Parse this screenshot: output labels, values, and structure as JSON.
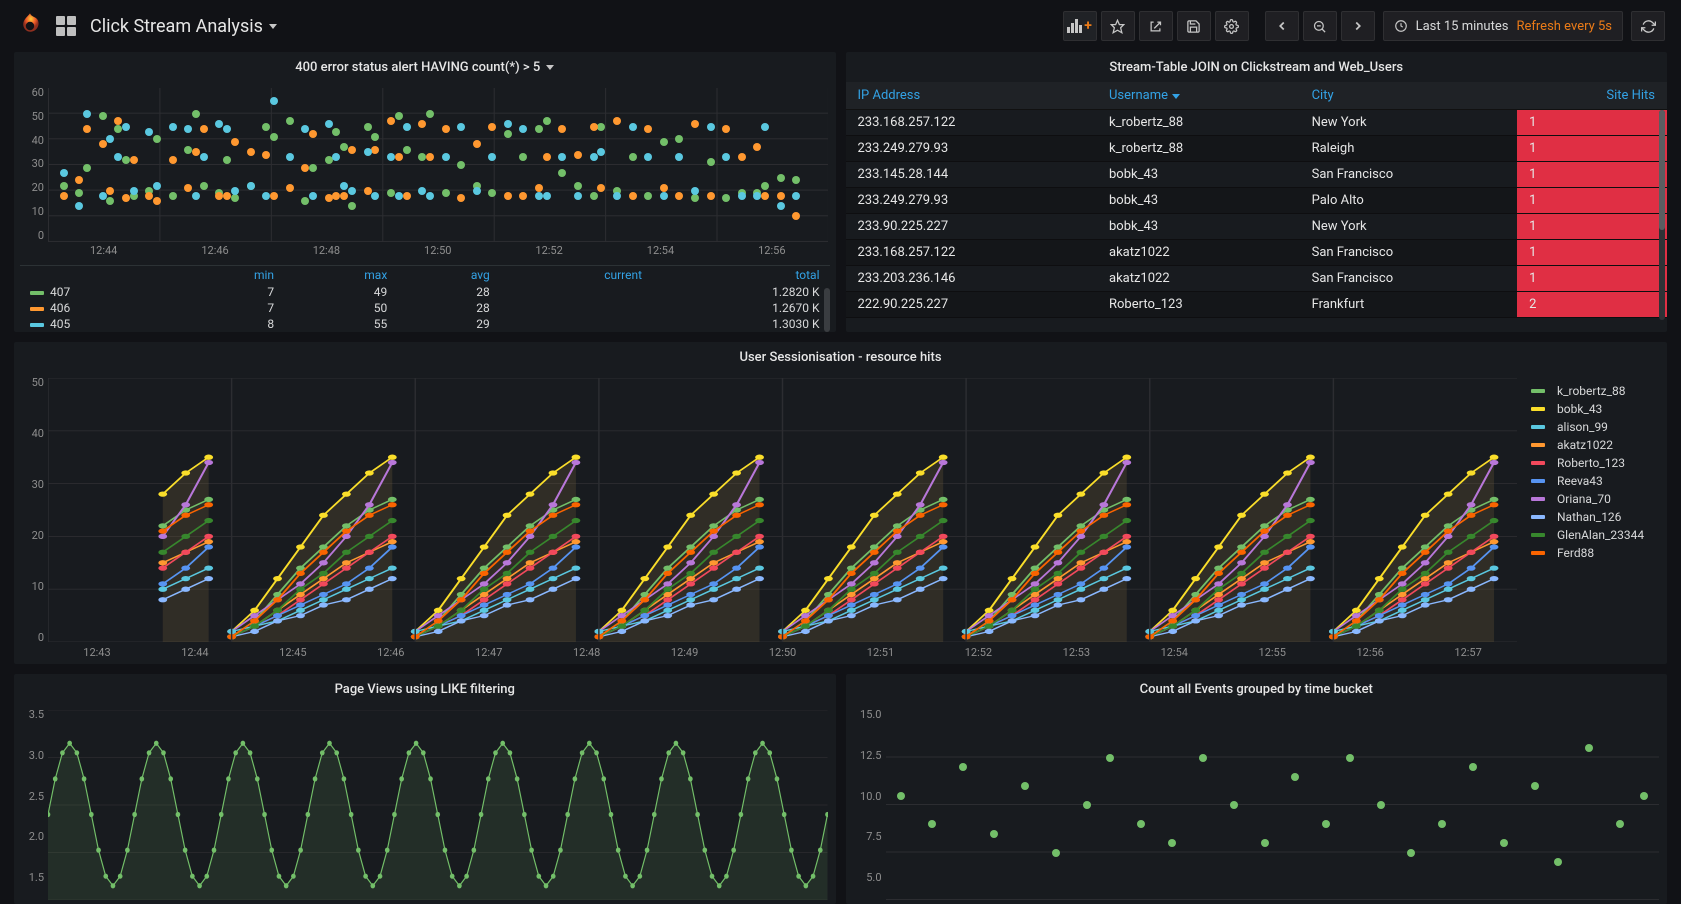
{
  "colors": {
    "accent": "#eb7b18",
    "link": "#33a2e5",
    "red_alert": "#e02f44",
    "panel_bg": "#181b1f",
    "grid": "#2c2d31"
  },
  "header": {
    "title": "Click Stream Analysis",
    "time_range": "Last 15 minutes",
    "refresh_label": "Refresh every 5s"
  },
  "toolbar_icons": {
    "add_panel": "add-panel-icon",
    "star": "star-icon",
    "share": "share-icon",
    "save": "save-icon",
    "settings": "gear-icon",
    "back": "chevron-left-icon",
    "zoom": "zoom-out-icon",
    "forward": "chevron-right-icon",
    "cycle": "refresh-icon"
  },
  "panel_error": {
    "title": "400 error status alert HAVING count(*) > 5",
    "y": {
      "min": 0,
      "max": 60,
      "ticks": [
        0,
        10,
        20,
        30,
        40,
        50,
        60
      ]
    },
    "x_ticks": [
      "12:44",
      "12:46",
      "12:48",
      "12:50",
      "12:52",
      "12:54",
      "12:56"
    ],
    "legend_headers": [
      "",
      "min",
      "max",
      "avg",
      "current",
      "total"
    ],
    "series": [
      {
        "label": "407",
        "color": "#73bf69",
        "min": 7,
        "max": 49,
        "avg": 28,
        "current": "",
        "total": "1.2820 K"
      },
      {
        "label": "406",
        "color": "#ff9830",
        "min": 7,
        "max": 50,
        "avg": 28,
        "current": "",
        "total": "1.2670 K"
      },
      {
        "label": "405",
        "color": "#5ac8e0",
        "min": 8,
        "max": 55,
        "avg": 29,
        "current": "",
        "total": "1.3030 K"
      }
    ],
    "points": {
      "green": [
        [
          2,
          22
        ],
        [
          4,
          19
        ],
        [
          5,
          29
        ],
        [
          7,
          49
        ],
        [
          8,
          16
        ],
        [
          9,
          44
        ],
        [
          10,
          32
        ],
        [
          11,
          18
        ],
        [
          13,
          20
        ],
        [
          14,
          40
        ],
        [
          16,
          18
        ],
        [
          18,
          36
        ],
        [
          19,
          50
        ],
        [
          20,
          22
        ],
        [
          22,
          19
        ],
        [
          23,
          32
        ],
        [
          24,
          17
        ],
        [
          26,
          22
        ],
        [
          28,
          45
        ],
        [
          29,
          41
        ],
        [
          31,
          47
        ],
        [
          33,
          16
        ],
        [
          34,
          29
        ],
        [
          36,
          32
        ],
        [
          37,
          43
        ],
        [
          38,
          37
        ],
        [
          39,
          14
        ],
        [
          41,
          45
        ],
        [
          42,
          41
        ],
        [
          44,
          19
        ],
        [
          45,
          49
        ],
        [
          46,
          36
        ],
        [
          48,
          33
        ],
        [
          49,
          50
        ],
        [
          51,
          19
        ],
        [
          53,
          30
        ],
        [
          55,
          22
        ],
        [
          57,
          19
        ],
        [
          59,
          42
        ],
        [
          61,
          33
        ],
        [
          63,
          44
        ],
        [
          64,
          47
        ],
        [
          66,
          27
        ],
        [
          68,
          22
        ],
        [
          70,
          18
        ],
        [
          71,
          45
        ],
        [
          73,
          20
        ],
        [
          75,
          33
        ],
        [
          77,
          18
        ],
        [
          79,
          39
        ],
        [
          81,
          40
        ],
        [
          83,
          17
        ],
        [
          85,
          31
        ],
        [
          87,
          17
        ],
        [
          89,
          19
        ],
        [
          91,
          19
        ],
        [
          92,
          22
        ],
        [
          94,
          25
        ],
        [
          96,
          24
        ]
      ],
      "orange": [
        [
          2,
          18
        ],
        [
          4,
          24
        ],
        [
          5,
          44
        ],
        [
          7,
          38
        ],
        [
          8,
          20
        ],
        [
          9,
          47
        ],
        [
          10,
          17
        ],
        [
          11,
          32
        ],
        [
          13,
          18
        ],
        [
          14,
          16
        ],
        [
          16,
          32
        ],
        [
          18,
          21
        ],
        [
          19,
          35
        ],
        [
          20,
          44
        ],
        [
          22,
          18
        ],
        [
          23,
          18
        ],
        [
          24,
          39
        ],
        [
          26,
          35
        ],
        [
          28,
          34
        ],
        [
          29,
          18
        ],
        [
          31,
          21
        ],
        [
          33,
          29
        ],
        [
          34,
          42
        ],
        [
          36,
          17
        ],
        [
          37,
          18
        ],
        [
          38,
          18
        ],
        [
          39,
          36
        ],
        [
          41,
          20
        ],
        [
          42,
          36
        ],
        [
          44,
          47
        ],
        [
          45,
          33
        ],
        [
          46,
          18
        ],
        [
          48,
          46
        ],
        [
          49,
          33
        ],
        [
          51,
          44
        ],
        [
          53,
          17
        ],
        [
          55,
          38
        ],
        [
          57,
          45
        ],
        [
          59,
          18
        ],
        [
          61,
          18
        ],
        [
          63,
          21
        ],
        [
          64,
          33
        ],
        [
          66,
          44
        ],
        [
          68,
          34
        ],
        [
          70,
          45
        ],
        [
          71,
          21
        ],
        [
          73,
          47
        ],
        [
          75,
          18
        ],
        [
          77,
          44
        ],
        [
          79,
          21
        ],
        [
          81,
          18
        ],
        [
          83,
          46
        ],
        [
          85,
          18
        ],
        [
          87,
          44
        ],
        [
          89,
          33
        ],
        [
          91,
          37
        ],
        [
          92,
          18
        ],
        [
          94,
          18
        ],
        [
          96,
          10
        ]
      ],
      "cyan": [
        [
          2,
          27
        ],
        [
          4,
          14
        ],
        [
          5,
          50
        ],
        [
          7,
          18
        ],
        [
          8,
          40
        ],
        [
          9,
          33
        ],
        [
          10,
          45
        ],
        [
          11,
          20
        ],
        [
          13,
          43
        ],
        [
          14,
          22
        ],
        [
          16,
          45
        ],
        [
          18,
          44
        ],
        [
          19,
          18
        ],
        [
          20,
          33
        ],
        [
          22,
          46
        ],
        [
          23,
          44
        ],
        [
          24,
          20
        ],
        [
          26,
          22
        ],
        [
          28,
          18
        ],
        [
          29,
          55
        ],
        [
          31,
          33
        ],
        [
          33,
          44
        ],
        [
          34,
          18
        ],
        [
          36,
          46
        ],
        [
          37,
          33
        ],
        [
          38,
          22
        ],
        [
          39,
          20
        ],
        [
          41,
          35
        ],
        [
          42,
          18
        ],
        [
          44,
          33
        ],
        [
          45,
          18
        ],
        [
          46,
          45
        ],
        [
          48,
          20
        ],
        [
          49,
          18
        ],
        [
          51,
          33
        ],
        [
          53,
          45
        ],
        [
          55,
          20
        ],
        [
          57,
          33
        ],
        [
          59,
          46
        ],
        [
          61,
          44
        ],
        [
          63,
          18
        ],
        [
          64,
          18
        ],
        [
          66,
          33
        ],
        [
          68,
          18
        ],
        [
          70,
          33
        ],
        [
          71,
          35
        ],
        [
          73,
          18
        ],
        [
          75,
          45
        ],
        [
          77,
          33
        ],
        [
          79,
          18
        ],
        [
          81,
          33
        ],
        [
          83,
          20
        ],
        [
          85,
          45
        ],
        [
          87,
          33
        ],
        [
          89,
          18
        ],
        [
          91,
          18
        ],
        [
          92,
          45
        ],
        [
          94,
          14
        ],
        [
          96,
          18
        ]
      ]
    }
  },
  "panel_join": {
    "title": "Stream-Table JOIN on Clickstream and Web_Users",
    "columns": [
      "IP Address",
      "Username",
      "City",
      "Site Hits"
    ],
    "sort_column": "Username",
    "rows": [
      [
        "233.168.257.122",
        "k_robertz_88",
        "New York",
        "1"
      ],
      [
        "233.249.279.93",
        "k_robertz_88",
        "Raleigh",
        "1"
      ],
      [
        "233.145.28.144",
        "bobk_43",
        "San Francisco",
        "1"
      ],
      [
        "233.249.279.93",
        "bobk_43",
        "Palo Alto",
        "1"
      ],
      [
        "233.90.225.227",
        "bobk_43",
        "New York",
        "1"
      ],
      [
        "233.168.257.122",
        "akatz1022",
        "San Francisco",
        "1"
      ],
      [
        "233.203.236.146",
        "akatz1022",
        "San Francisco",
        "1"
      ],
      [
        "222.90.225.227",
        "Roberto_123",
        "Frankfurt",
        "2"
      ]
    ]
  },
  "panel_session": {
    "title": "User Sessionisation - resource hits",
    "y": {
      "min": 0,
      "max": 50,
      "ticks": [
        0,
        10,
        20,
        30,
        40,
        50
      ]
    },
    "x_ticks": [
      "12:43",
      "12:44",
      "12:45",
      "12:46",
      "12:47",
      "12:48",
      "12:49",
      "12:50",
      "12:51",
      "12:52",
      "12:53",
      "12:54",
      "12:55",
      "12:56",
      "12:57"
    ],
    "legend": [
      {
        "label": "k_robertz_88",
        "color": "#73bf69"
      },
      {
        "label": "bobk_43",
        "color": "#fade2a"
      },
      {
        "label": "alison_99",
        "color": "#5ac8e0"
      },
      {
        "label": "akatz1022",
        "color": "#ff9830"
      },
      {
        "label": "Roberto_123",
        "color": "#f2495c"
      },
      {
        "label": "Reeva43",
        "color": "#5794f2"
      },
      {
        "label": "Oriana_70",
        "color": "#b877d9"
      },
      {
        "label": "Nathan_126",
        "color": "#8ab8ff"
      },
      {
        "label": "GlenAlan_23344",
        "color": "#37872d"
      },
      {
        "label": "Ferd88",
        "color": "#fa6400"
      }
    ],
    "block_template": [
      {
        "color": "#fade2a",
        "pts": [
          [
            0,
            2
          ],
          [
            1,
            6
          ],
          [
            2,
            12
          ],
          [
            3,
            18
          ],
          [
            4,
            24
          ],
          [
            5,
            28
          ],
          [
            6,
            32
          ],
          [
            7,
            35
          ]
        ]
      },
      {
        "color": "#73bf69",
        "pts": [
          [
            0,
            1
          ],
          [
            1,
            4
          ],
          [
            2,
            9
          ],
          [
            3,
            14
          ],
          [
            4,
            18
          ],
          [
            5,
            22
          ],
          [
            6,
            25
          ],
          [
            7,
            27
          ]
        ]
      },
      {
        "color": "#b877d9",
        "pts": [
          [
            0,
            2
          ],
          [
            1,
            5
          ],
          [
            2,
            8
          ],
          [
            3,
            11
          ],
          [
            4,
            15
          ],
          [
            5,
            20
          ],
          [
            6,
            26
          ],
          [
            7,
            34
          ]
        ]
      },
      {
        "color": "#ff9830",
        "pts": [
          [
            0,
            1
          ],
          [
            1,
            3
          ],
          [
            2,
            6
          ],
          [
            3,
            9
          ],
          [
            4,
            12
          ],
          [
            5,
            15
          ],
          [
            6,
            17
          ],
          [
            7,
            19
          ]
        ]
      },
      {
        "color": "#f2495c",
        "pts": [
          [
            0,
            1
          ],
          [
            1,
            3
          ],
          [
            2,
            5
          ],
          [
            3,
            8
          ],
          [
            4,
            11
          ],
          [
            5,
            14
          ],
          [
            6,
            17
          ],
          [
            7,
            20
          ]
        ]
      },
      {
        "color": "#5794f2",
        "pts": [
          [
            0,
            1
          ],
          [
            1,
            3
          ],
          [
            2,
            5
          ],
          [
            3,
            7
          ],
          [
            4,
            9
          ],
          [
            5,
            11
          ],
          [
            6,
            14
          ],
          [
            7,
            18
          ]
        ]
      },
      {
        "color": "#5ac8e0",
        "pts": [
          [
            0,
            2
          ],
          [
            1,
            3
          ],
          [
            2,
            4
          ],
          [
            3,
            6
          ],
          [
            4,
            8
          ],
          [
            5,
            10
          ],
          [
            6,
            12
          ],
          [
            7,
            14
          ]
        ]
      },
      {
        "color": "#8ab8ff",
        "pts": [
          [
            0,
            1
          ],
          [
            1,
            2
          ],
          [
            2,
            4
          ],
          [
            3,
            5
          ],
          [
            4,
            7
          ],
          [
            5,
            8
          ],
          [
            6,
            10
          ],
          [
            7,
            12
          ]
        ]
      },
      {
        "color": "#37872d",
        "pts": [
          [
            0,
            1
          ],
          [
            1,
            3
          ],
          [
            2,
            6
          ],
          [
            3,
            10
          ],
          [
            4,
            13
          ],
          [
            5,
            17
          ],
          [
            6,
            20
          ],
          [
            7,
            23
          ]
        ]
      },
      {
        "color": "#fa6400",
        "pts": [
          [
            0,
            1
          ],
          [
            1,
            4
          ],
          [
            2,
            8
          ],
          [
            3,
            13
          ],
          [
            4,
            17
          ],
          [
            5,
            21
          ],
          [
            6,
            24
          ],
          [
            7,
            26
          ]
        ]
      }
    ],
    "block_count": 7,
    "first_block_start_index": 5
  },
  "panel_pageviews": {
    "title": "Page Views using LIKE filtering",
    "y": {
      "min": 1.5,
      "max": 3.5,
      "ticks": [
        "3.5",
        "3.0",
        "2.5",
        "2.0",
        "1.5"
      ]
    },
    "series_color": "#73bf69",
    "wave": {
      "cycles": 9,
      "amp": 0.75,
      "mid": 2.4,
      "points_per_cycle": 12
    }
  },
  "panel_count": {
    "title": "Count all Events grouped by time bucket",
    "y": {
      "min": 5.0,
      "max": 15.0,
      "ticks": [
        "15.0",
        "12.5",
        "10.0",
        "7.5",
        "5.0"
      ]
    },
    "series_color": "#73bf69",
    "points": [
      [
        2,
        10.5
      ],
      [
        6,
        9
      ],
      [
        10,
        12
      ],
      [
        14,
        8.5
      ],
      [
        18,
        11
      ],
      [
        22,
        7.5
      ],
      [
        26,
        10
      ],
      [
        29,
        12.5
      ],
      [
        33,
        9
      ],
      [
        37,
        8
      ],
      [
        41,
        12.5
      ],
      [
        45,
        10
      ],
      [
        49,
        8
      ],
      [
        53,
        11.5
      ],
      [
        57,
        9
      ],
      [
        60,
        12.5
      ],
      [
        64,
        10
      ],
      [
        68,
        7.5
      ],
      [
        72,
        9
      ],
      [
        76,
        12
      ],
      [
        80,
        8
      ],
      [
        84,
        11
      ],
      [
        87,
        7
      ],
      [
        91,
        13
      ],
      [
        95,
        9
      ],
      [
        98,
        10.5
      ]
    ]
  }
}
